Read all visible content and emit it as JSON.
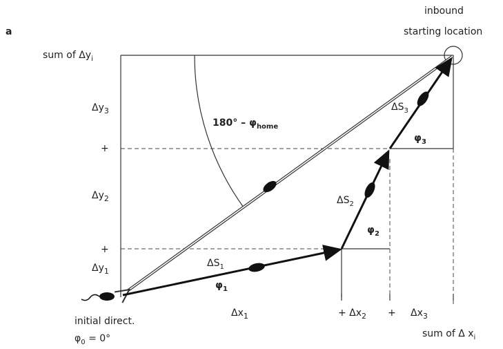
{
  "labels": [
    {
      "text": "a"
    },
    {
      "text": "inbound"
    },
    {
      "text": "starting location"
    },
    {
      "text": "sum of Δy",
      "sub": "i"
    },
    {
      "text": "Δy",
      "sub": "3"
    },
    {
      "text": "+"
    },
    {
      "text": "Δy",
      "sub": "2"
    },
    {
      "text": "+"
    },
    {
      "text": "Δy",
      "sub": "1"
    },
    {
      "text": "180° – φ",
      "sub": "home"
    },
    {
      "text": "ΔS",
      "sub": "3"
    },
    {
      "text": "φ",
      "sub": "3"
    },
    {
      "text": "ΔS",
      "sub": "2"
    },
    {
      "text": "φ",
      "sub": "2"
    },
    {
      "text": "ΔS",
      "sub": "1"
    },
    {
      "text": "φ",
      "sub": "1"
    },
    {
      "text": "Δx",
      "sub": "1"
    },
    {
      "text": "+ Δx",
      "sub": "2"
    },
    {
      "text": "+"
    },
    {
      "text": "Δx",
      "sub": "3"
    },
    {
      "text": "initial direct."
    },
    {
      "text": "φ",
      "sub": "0",
      "after": " = 0°"
    },
    {
      "text": "sum of Δ x",
      "sub": "i"
    }
  ]
}
